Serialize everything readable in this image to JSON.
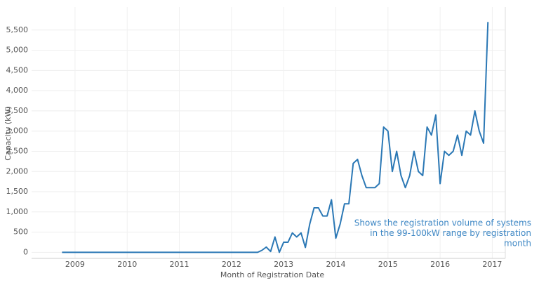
{
  "chart_data": {
    "type": "line",
    "y_label": "Capacity (kW)",
    "x_label": "Month of Registration Date",
    "annotation": [
      "Shows the registration volume of systems",
      "in the 99-100kW range by registration",
      "month"
    ],
    "x": [
      "2008-10",
      "2008-11",
      "2008-12",
      "2009-01",
      "2009-02",
      "2009-03",
      "2009-04",
      "2009-05",
      "2009-06",
      "2009-07",
      "2009-08",
      "2009-09",
      "2009-10",
      "2009-11",
      "2009-12",
      "2010-01",
      "2010-02",
      "2010-03",
      "2010-04",
      "2010-05",
      "2010-06",
      "2010-07",
      "2010-08",
      "2010-09",
      "2010-10",
      "2010-11",
      "2010-12",
      "2011-01",
      "2011-02",
      "2011-03",
      "2011-04",
      "2011-05",
      "2011-06",
      "2011-07",
      "2011-08",
      "2011-09",
      "2011-10",
      "2011-11",
      "2011-12",
      "2012-01",
      "2012-02",
      "2012-03",
      "2012-04",
      "2012-05",
      "2012-06",
      "2012-07",
      "2012-08",
      "2012-09",
      "2012-10",
      "2012-11",
      "2012-12",
      "2013-01",
      "2013-02",
      "2013-03",
      "2013-04",
      "2013-05",
      "2013-06",
      "2013-07",
      "2013-08",
      "2013-09",
      "2013-10",
      "2013-11",
      "2013-12",
      "2014-01",
      "2014-02",
      "2014-03",
      "2014-04",
      "2014-05",
      "2014-06",
      "2014-07",
      "2014-08",
      "2014-09",
      "2014-10",
      "2014-11",
      "2014-12",
      "2015-01",
      "2015-02",
      "2015-03",
      "2015-04",
      "2015-05",
      "2015-06",
      "2015-07",
      "2015-08",
      "2015-09",
      "2015-10",
      "2015-11",
      "2015-12",
      "2016-01",
      "2016-02",
      "2016-03",
      "2016-04",
      "2016-05",
      "2016-06",
      "2016-07",
      "2016-08",
      "2016-09",
      "2016-10",
      "2016-11",
      "2016-12"
    ],
    "series": [
      {
        "color": "#2b78b5",
        "values": [
          0,
          0,
          0,
          0,
          0,
          0,
          0,
          0,
          0,
          0,
          0,
          0,
          0,
          0,
          0,
          0,
          0,
          0,
          0,
          0,
          0,
          0,
          0,
          0,
          0,
          0,
          0,
          0,
          0,
          0,
          0,
          0,
          0,
          0,
          0,
          0,
          0,
          0,
          0,
          0,
          0,
          0,
          0,
          0,
          0,
          0,
          50,
          130,
          20,
          380,
          0,
          250,
          250,
          480,
          380,
          480,
          120,
          700,
          1100,
          1100,
          900,
          900,
          1300,
          350,
          700,
          1200,
          1200,
          2200,
          2300,
          1900,
          1600,
          1600,
          1600,
          1700,
          3100,
          3000,
          2000,
          2500,
          1900,
          1600,
          1900,
          2500,
          2000,
          1900,
          3100,
          2900,
          3400,
          1700,
          2500,
          2400,
          2500,
          2900,
          2400,
          3000,
          2900,
          3500,
          3000,
          2700,
          5700
        ]
      }
    ],
    "xlim": [
      "2008-03",
      "2017-04"
    ],
    "xticks": [
      2009,
      2010,
      2011,
      2012,
      2013,
      2014,
      2015,
      2016,
      2017
    ],
    "ylim": [
      -150,
      6070
    ],
    "yticks": [
      0,
      500,
      {
        "value": 1000,
        "label": "1,000"
      },
      {
        "value": 1500,
        "label": "1,500"
      },
      {
        "value": 2000,
        "label": "2,000"
      },
      {
        "value": 2500,
        "label": "2,500"
      },
      {
        "value": 3000,
        "label": "3,000"
      },
      {
        "value": 3500,
        "label": "3,500"
      },
      {
        "value": 4000,
        "label": "4,000"
      },
      {
        "value": 4500,
        "label": "4,500"
      },
      {
        "value": 5000,
        "label": "5,000"
      },
      {
        "value": 5500,
        "label": "5,500"
      }
    ],
    "grid": true
  }
}
